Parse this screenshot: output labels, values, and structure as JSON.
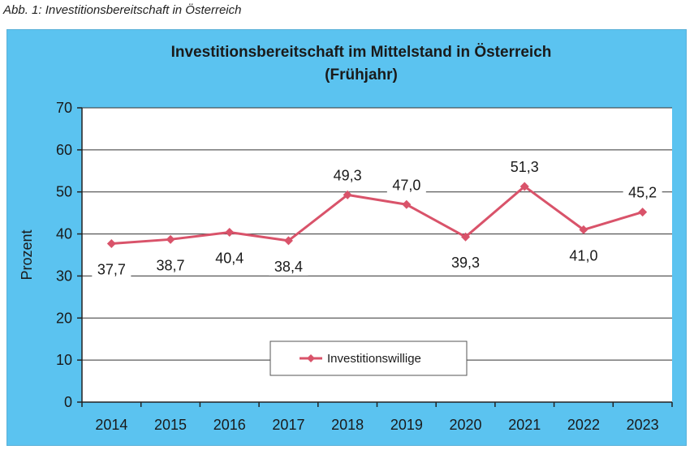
{
  "caption": "Abb. 1: Investitionsbereitschaft in Österreich",
  "chart_data": {
    "type": "line",
    "title": "Investitionsbereitschaft im Mittelstand in Österreich",
    "subtitle": "(Frühjahr)",
    "xlabel": "",
    "ylabel": "Prozent",
    "ylim": [
      0,
      70
    ],
    "yticks": [
      0,
      10,
      20,
      30,
      40,
      50,
      60,
      70
    ],
    "grid": true,
    "legend_position": "bottom-center",
    "categories": [
      "2014",
      "2015",
      "2016",
      "2017",
      "2018",
      "2019",
      "2020",
      "2021",
      "2022",
      "2023"
    ],
    "series": [
      {
        "name": "Investitionswillige",
        "color": "#d9536a",
        "values": [
          37.7,
          38.7,
          40.4,
          38.4,
          49.3,
          47.0,
          39.3,
          51.3,
          41.0,
          45.2
        ],
        "labels": [
          "37,7",
          "38,7",
          "40,4",
          "38,4",
          "49,3",
          "47,0",
          "39,3",
          "51,3",
          "41,0",
          "45,2"
        ]
      }
    ]
  }
}
